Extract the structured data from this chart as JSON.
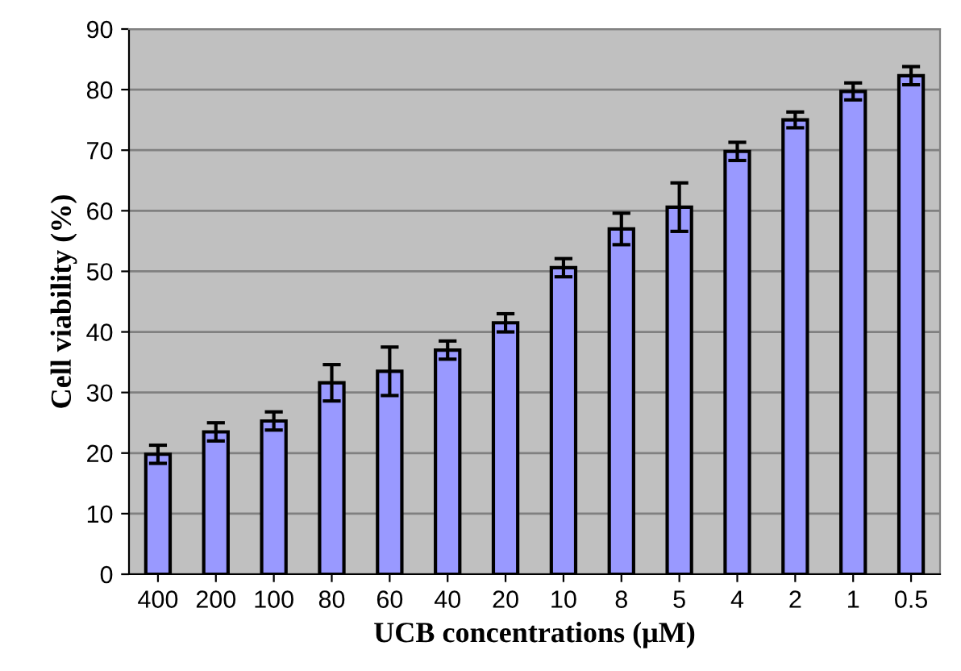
{
  "chart_data": {
    "type": "bar",
    "xlabel": "UCB concentrations (μM)",
    "ylabel": "Cell viability (%)",
    "categories": [
      "400",
      "200",
      "100",
      "80",
      "60",
      "40",
      "20",
      "10",
      "8",
      "5",
      "4",
      "2",
      "1",
      "0.5"
    ],
    "values": [
      19.8,
      23.5,
      25.3,
      31.6,
      33.5,
      37,
      41.5,
      50.6,
      57,
      60.6,
      69.8,
      75,
      79.7,
      82.3
    ],
    "errors": [
      1.5,
      1.5,
      1.5,
      3,
      4,
      1.5,
      1.5,
      1.5,
      2.6,
      4,
      1.5,
      1.3,
      1.4,
      1.5
    ],
    "color": "#9999ff",
    "ylim": [
      0,
      90
    ],
    "yticks": [
      0,
      10,
      20,
      30,
      40,
      50,
      60,
      70,
      80,
      90
    ],
    "grid": "y"
  }
}
